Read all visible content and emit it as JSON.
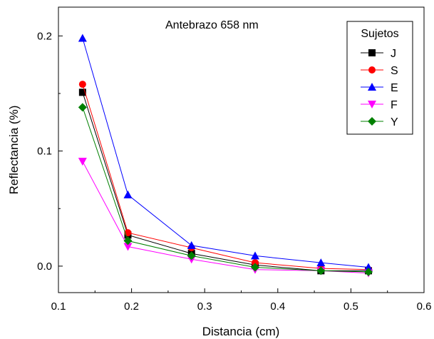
{
  "chart_data": {
    "type": "line",
    "title": "Antebrazo 658 nm",
    "xlabel": "Distancia (cm)",
    "ylabel": "Reflectancia (%)",
    "xlim": [
      0.1,
      0.6
    ],
    "ylim": [
      -0.023,
      0.225
    ],
    "xticks": [
      0.1,
      0.2,
      0.3,
      0.4,
      0.5,
      0.6
    ],
    "xtick_labels": [
      "0.1",
      "0.2",
      "0.3",
      "0.4",
      "0.5",
      "0.6"
    ],
    "yticks": [
      0.0,
      0.1,
      0.2
    ],
    "ytick_labels": [
      "0.0",
      "0.1",
      "0.2"
    ],
    "grid": false,
    "legend": {
      "title": "Sujetos",
      "placement": "top-right"
    },
    "x": [
      0.133,
      0.195,
      0.282,
      0.369,
      0.459,
      0.524
    ],
    "series": [
      {
        "name": "J",
        "color": "#000000",
        "marker": "square",
        "values": [
          0.151,
          0.027,
          0.011,
          0.001,
          -0.004,
          -0.004
        ]
      },
      {
        "name": "S",
        "color": "#ff0000",
        "marker": "circle",
        "values": [
          0.158,
          0.029,
          0.016,
          0.003,
          -0.002,
          -0.003
        ]
      },
      {
        "name": "E",
        "color": "#0000ff",
        "marker": "triangle-up",
        "values": [
          0.198,
          0.062,
          0.018,
          0.009,
          0.003,
          -0.001
        ]
      },
      {
        "name": "F",
        "color": "#ff00ff",
        "marker": "triangle-down",
        "values": [
          0.091,
          0.017,
          0.006,
          -0.003,
          -0.004,
          -0.006
        ]
      },
      {
        "name": "Y",
        "color": "#008000",
        "marker": "diamond",
        "values": [
          0.138,
          0.022,
          0.009,
          -0.001,
          -0.004,
          -0.005
        ]
      }
    ]
  }
}
